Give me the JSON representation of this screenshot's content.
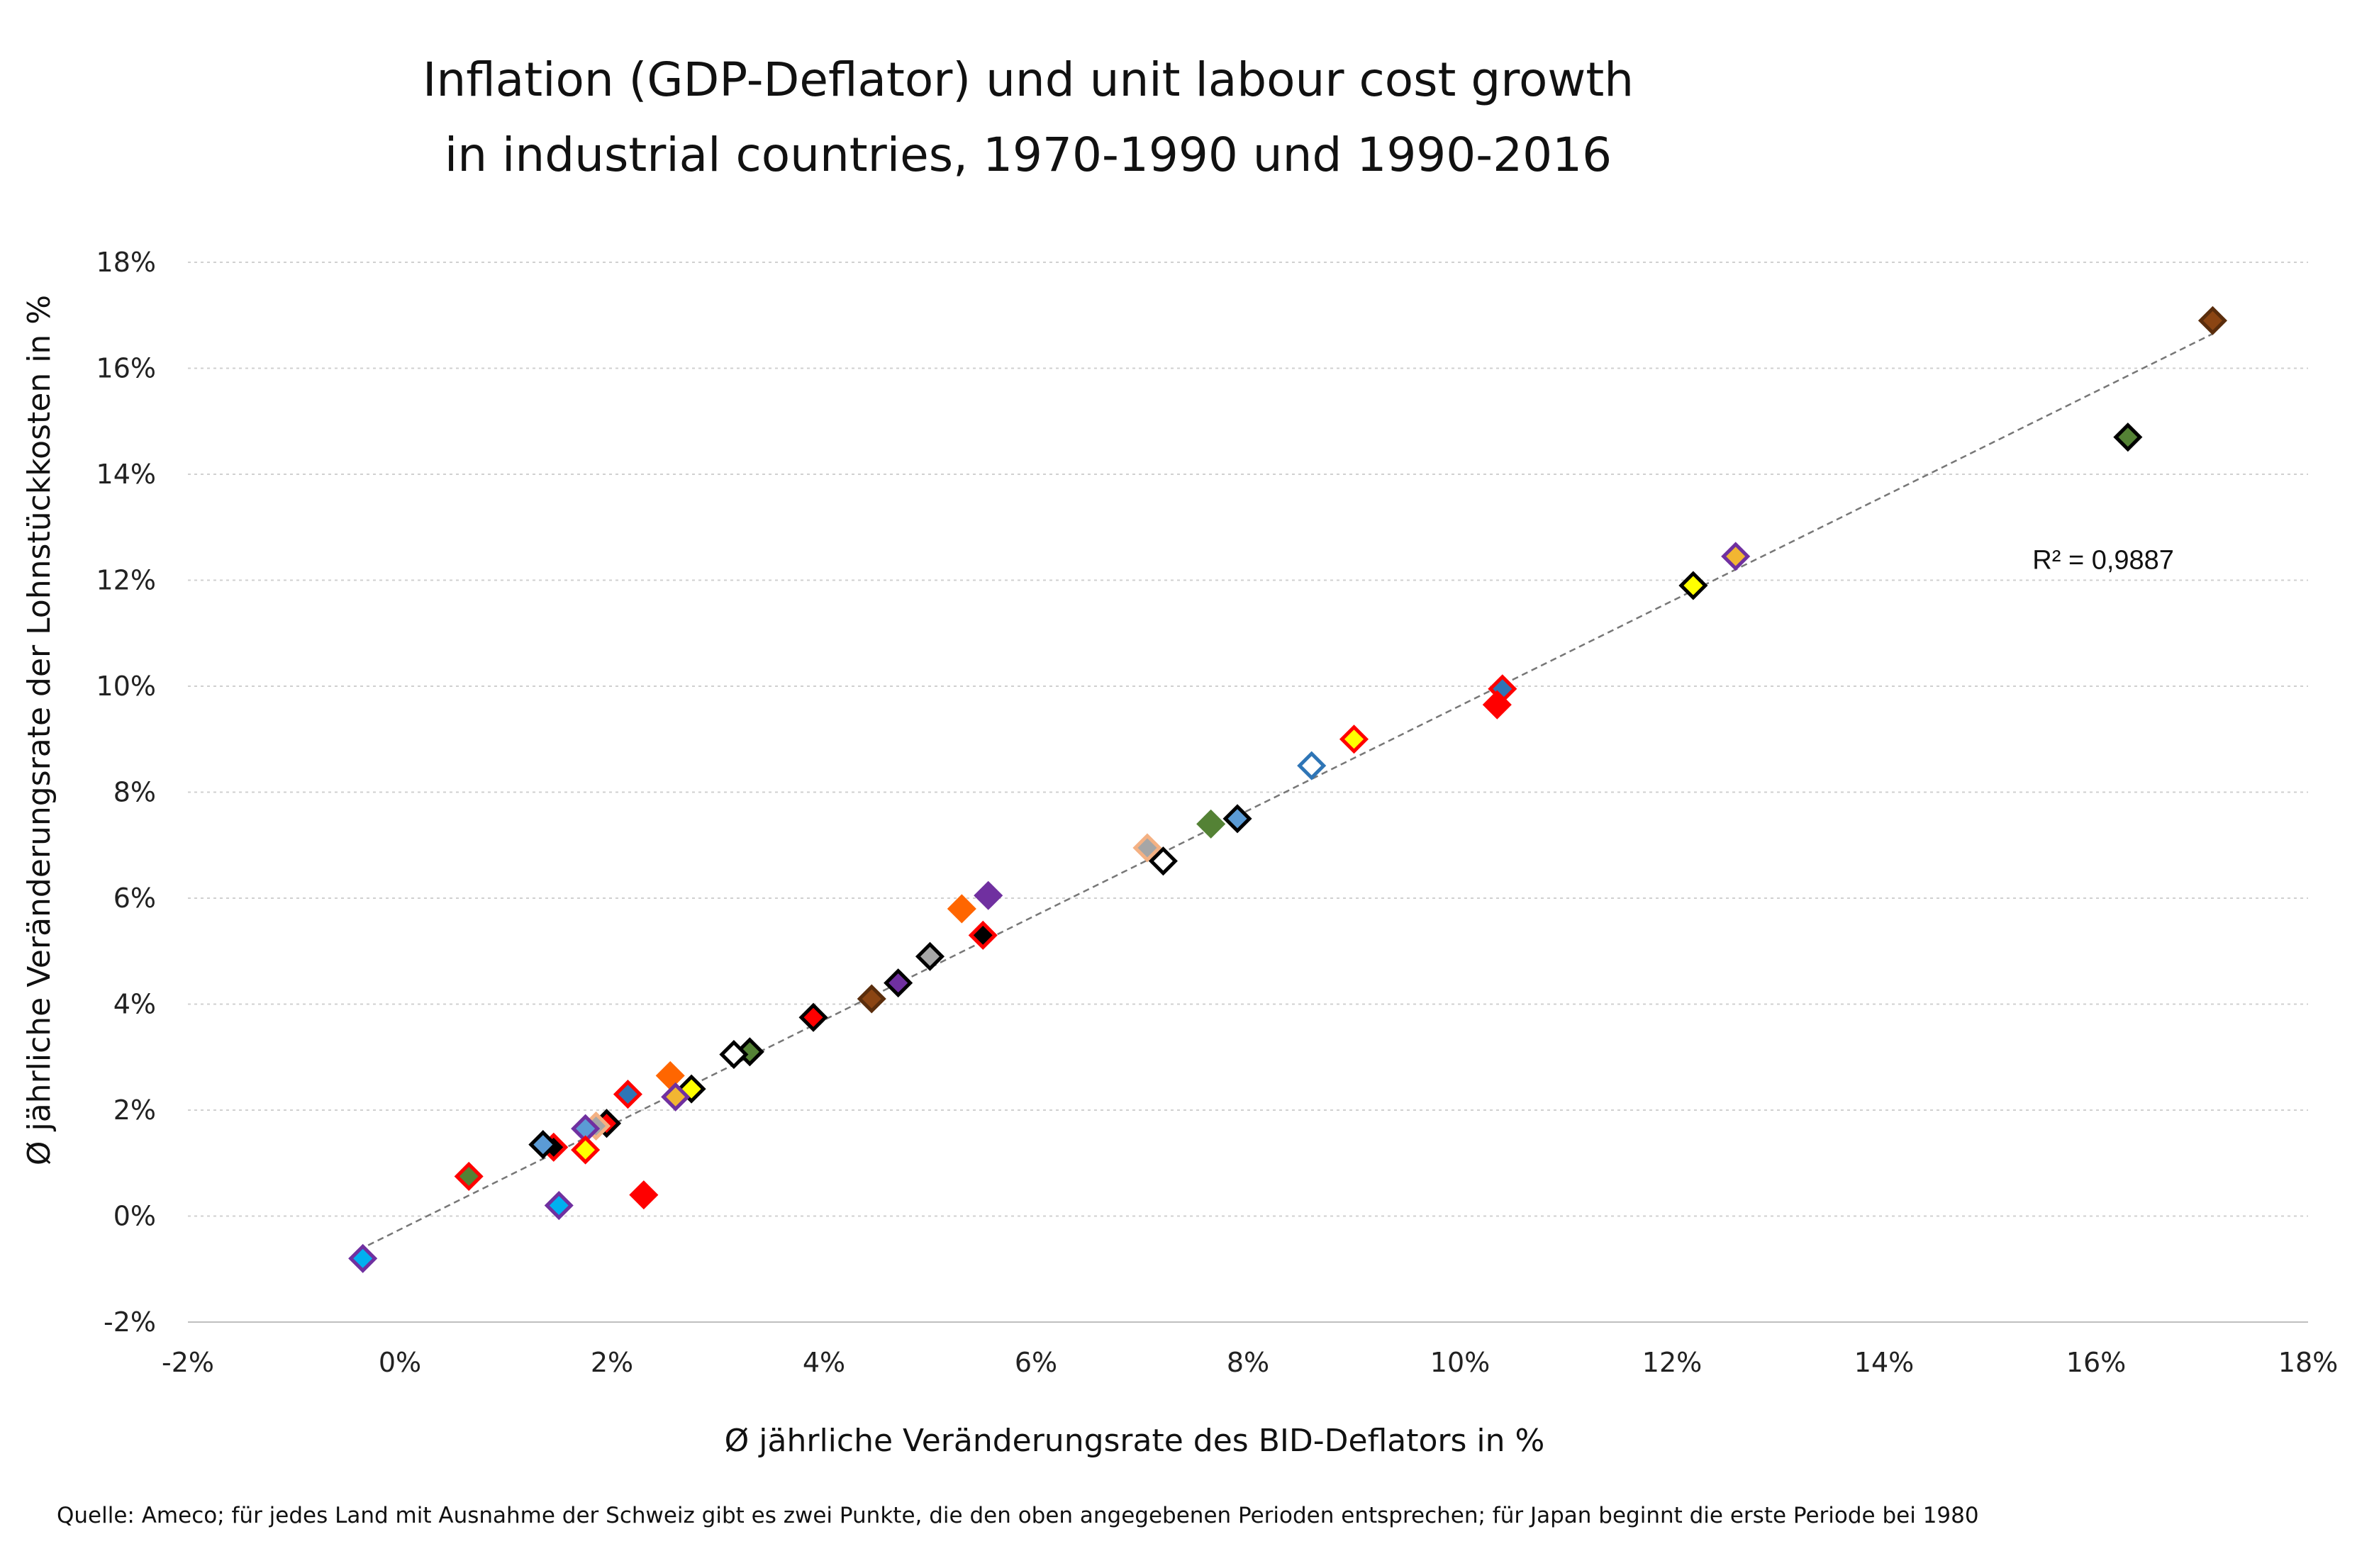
{
  "chart_data": {
    "type": "scatter",
    "title_lines": [
      "Inflation (GDP-Deflator) und unit labour cost growth",
      "in industrial countries, 1970-1990 und 1990-2016"
    ],
    "xlabel": "Ø jährliche Veränderungsrate des BID-Deflators in %",
    "ylabel": "Ø jährliche Veränderungsrate der Lohnstückkosten in %",
    "xlim": [
      -2,
      18
    ],
    "ylim": [
      -2,
      18
    ],
    "x_ticks": [
      -2,
      0,
      2,
      4,
      6,
      8,
      10,
      12,
      14,
      16,
      18
    ],
    "y_ticks": [
      -2,
      0,
      2,
      4,
      6,
      8,
      10,
      12,
      14,
      16,
      18
    ],
    "x_tick_labels": [
      "-2%",
      "0%",
      "2%",
      "4%",
      "6%",
      "8%",
      "10%",
      "12%",
      "14%",
      "16%",
      "18%"
    ],
    "y_tick_labels": [
      "-2%",
      "0%",
      "2%",
      "4%",
      "6%",
      "8%",
      "10%",
      "12%",
      "14%",
      "16%",
      "18%"
    ],
    "grid": "horizontal dotted",
    "marker": "diamond",
    "trendline": {
      "from": [
        -0.3,
        -0.55
      ],
      "to": [
        17.1,
        16.65
      ],
      "style": "dashed",
      "color": "#777777"
    },
    "annotation": {
      "text": "R² = 0,9887",
      "x": 15.4,
      "y": 12.4
    },
    "points": [
      {
        "x": 17.1,
        "y": 16.9,
        "fill": "#8B4513",
        "stroke": "#5a2d0c"
      },
      {
        "x": 16.3,
        "y": 14.7,
        "fill": "#548235",
        "stroke": "#000000"
      },
      {
        "x": 12.6,
        "y": 12.45,
        "fill": "#F2B632",
        "stroke": "#7030A0"
      },
      {
        "x": 12.2,
        "y": 11.9,
        "fill": "#FFFF00",
        "stroke": "#000000"
      },
      {
        "x": 10.4,
        "y": 9.95,
        "fill": "#2E75B6",
        "stroke": "#FF0000"
      },
      {
        "x": 10.35,
        "y": 9.65,
        "fill": "#FF0000",
        "stroke": "#FF0000"
      },
      {
        "x": 9.0,
        "y": 9.0,
        "fill": "#FFFF00",
        "stroke": "#FF0000"
      },
      {
        "x": 8.6,
        "y": 8.5,
        "fill": "#FFFFFF",
        "stroke": "#2E75B6"
      },
      {
        "x": 7.9,
        "y": 7.5,
        "fill": "#5B9BD5",
        "stroke": "#000000"
      },
      {
        "x": 7.65,
        "y": 7.4,
        "fill": "#548235",
        "stroke": "#548235"
      },
      {
        "x": 7.05,
        "y": 6.95,
        "fill": "#A6A6A6",
        "stroke": "#F4B183"
      },
      {
        "x": 7.2,
        "y": 6.7,
        "fill": "#FFFFFF",
        "stroke": "#000000"
      },
      {
        "x": 5.55,
        "y": 6.05,
        "fill": "#7030A0",
        "stroke": "#7030A0"
      },
      {
        "x": 5.3,
        "y": 5.8,
        "fill": "#FF6600",
        "stroke": "#FF6600"
      },
      {
        "x": 5.5,
        "y": 5.3,
        "fill": "#000000",
        "stroke": "#FF0000"
      },
      {
        "x": 5.0,
        "y": 4.9,
        "fill": "#A6A6A6",
        "stroke": "#000000"
      },
      {
        "x": 4.7,
        "y": 4.4,
        "fill": "#7030A0",
        "stroke": "#000000"
      },
      {
        "x": 4.45,
        "y": 4.1,
        "fill": "#8B4513",
        "stroke": "#5a2d0c"
      },
      {
        "x": 3.9,
        "y": 3.75,
        "fill": "#FF0000",
        "stroke": "#000000"
      },
      {
        "x": 3.3,
        "y": 3.1,
        "fill": "#548235",
        "stroke": "#000000"
      },
      {
        "x": 3.15,
        "y": 3.05,
        "fill": "#FFFFFF",
        "stroke": "#000000"
      },
      {
        "x": 2.75,
        "y": 2.4,
        "fill": "#FFFF00",
        "stroke": "#000000"
      },
      {
        "x": 2.55,
        "y": 2.65,
        "fill": "#FF6600",
        "stroke": "#FF6600"
      },
      {
        "x": 2.6,
        "y": 2.25,
        "fill": "#F2B632",
        "stroke": "#7030A0"
      },
      {
        "x": 2.15,
        "y": 2.3,
        "fill": "#2E75B6",
        "stroke": "#FF0000"
      },
      {
        "x": 1.95,
        "y": 1.75,
        "fill": "#FF0000",
        "stroke": "#000000"
      },
      {
        "x": 1.85,
        "y": 1.7,
        "fill": "#A6A6A6",
        "stroke": "#F4B183"
      },
      {
        "x": 1.75,
        "y": 1.65,
        "fill": "#5B9BD5",
        "stroke": "#7030A0"
      },
      {
        "x": 1.75,
        "y": 1.25,
        "fill": "#FFFF00",
        "stroke": "#FF0000"
      },
      {
        "x": 1.45,
        "y": 1.3,
        "fill": "#000000",
        "stroke": "#FF0000"
      },
      {
        "x": 1.35,
        "y": 1.35,
        "fill": "#5B9BD5",
        "stroke": "#000000"
      },
      {
        "x": 2.3,
        "y": 0.4,
        "fill": "#FF0000",
        "stroke": "#FF0000"
      },
      {
        "x": 1.5,
        "y": 0.2,
        "fill": "#00B0F0",
        "stroke": "#7030A0"
      },
      {
        "x": 0.65,
        "y": 0.75,
        "fill": "#548235",
        "stroke": "#FF0000"
      },
      {
        "x": -0.35,
        "y": -0.8,
        "fill": "#00B0F0",
        "stroke": "#7030A0"
      }
    ]
  },
  "source_note": "Quelle: Ameco; für jedes Land mit Ausnahme der Schweiz gibt es zwei Punkte, die den oben angegebenen Perioden entsprechen; für Japan beginnt die erste Periode bei 1980"
}
